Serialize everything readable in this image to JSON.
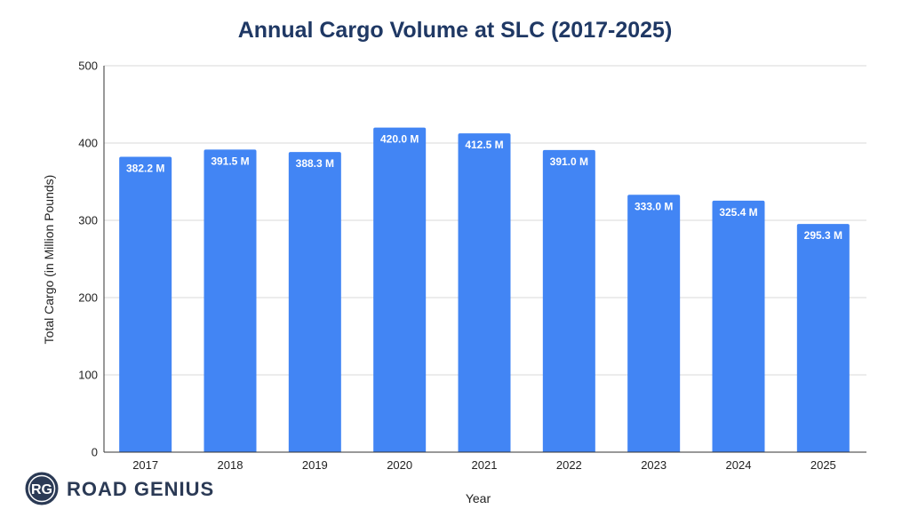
{
  "chart_data": {
    "type": "bar",
    "title": "Annual Cargo Volume at SLC (2017-2025)",
    "xlabel": "Year",
    "ylabel": "Total Cargo (in Million Pounds)",
    "categories": [
      "2017",
      "2018",
      "2019",
      "2020",
      "2021",
      "2022",
      "2023",
      "2024",
      "2025"
    ],
    "values": [
      382.2,
      391.5,
      388.3,
      420.0,
      412.5,
      391.0,
      333.0,
      325.4,
      295.3
    ],
    "value_labels": [
      "382.2 M",
      "391.5 M",
      "388.3 M",
      "420.0 M",
      "412.5 M",
      "391.0 M",
      "333.0 M",
      "325.4 M",
      "295.3 M"
    ],
    "ylim": [
      0,
      500
    ],
    "yticks": [
      "0",
      "100",
      "200",
      "300",
      "400",
      "500"
    ],
    "grid": true,
    "bar_color": "#4285f4",
    "grid_color": "#d9d9d9",
    "title_color": "#1f3864"
  },
  "brand": {
    "logo_mark": "RG",
    "logo_text": "ROAD GENIUS"
  }
}
